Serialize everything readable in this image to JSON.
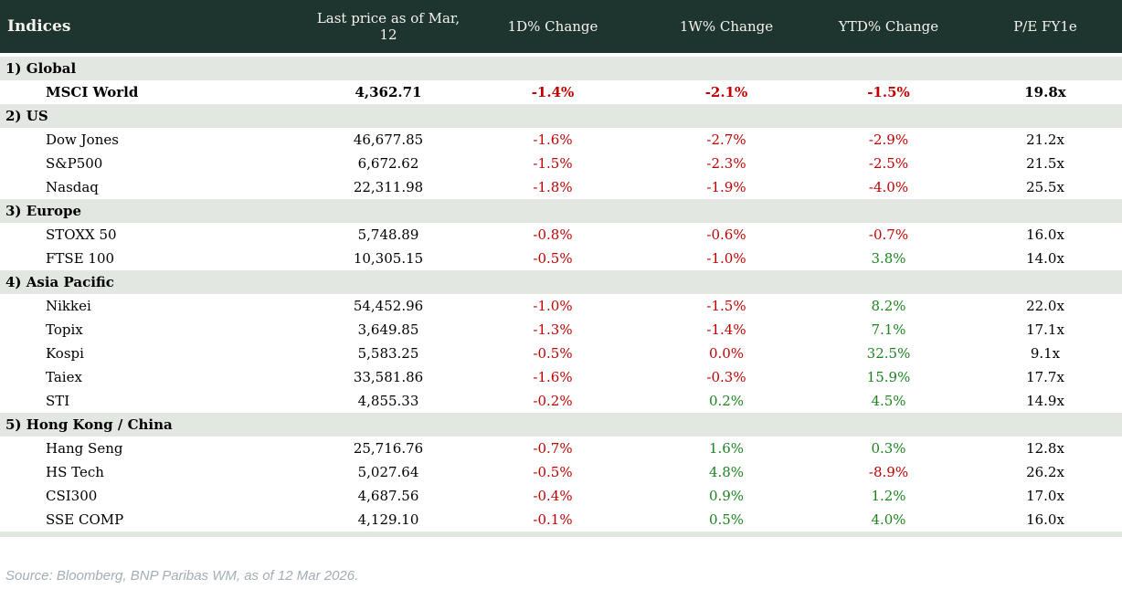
{
  "colors": {
    "header_bg": "#1e342e",
    "header_text": "#f5f3ec",
    "section_bg": "#e2e7e2",
    "negative": "#c00000",
    "positive": "#1d8420",
    "source_text": "#a3adb6"
  },
  "header": {
    "columns": [
      {
        "label": "Indices"
      },
      {
        "label": "Last price as of Mar, 12"
      },
      {
        "label": "1D% Change"
      },
      {
        "label": "1W% Change"
      },
      {
        "label": "YTD% Change"
      },
      {
        "label": "P/E FY1e"
      }
    ]
  },
  "sections": [
    {
      "label": "1) Global",
      "rows": [
        {
          "name": "MSCI World",
          "bold": true,
          "price": "4,362.71",
          "d1": "-1.4%",
          "d1c": "neg",
          "w1": "-2.1%",
          "w1c": "neg",
          "ytd": "-1.5%",
          "ytdc": "neg",
          "pe": "19.8x"
        }
      ]
    },
    {
      "label": "2) US",
      "rows": [
        {
          "name": "Dow Jones",
          "bold": false,
          "price": "46,677.85",
          "d1": "-1.6%",
          "d1c": "neg",
          "w1": "-2.7%",
          "w1c": "neg",
          "ytd": "-2.9%",
          "ytdc": "neg",
          "pe": "21.2x"
        },
        {
          "name": "S&P500",
          "bold": false,
          "price": "6,672.62",
          "d1": "-1.5%",
          "d1c": "neg",
          "w1": "-2.3%",
          "w1c": "neg",
          "ytd": "-2.5%",
          "ytdc": "neg",
          "pe": "21.5x"
        },
        {
          "name": "Nasdaq",
          "bold": false,
          "price": "22,311.98",
          "d1": "-1.8%",
          "d1c": "neg",
          "w1": "-1.9%",
          "w1c": "neg",
          "ytd": "-4.0%",
          "ytdc": "neg",
          "pe": "25.5x"
        }
      ]
    },
    {
      "label": "3) Europe",
      "rows": [
        {
          "name": "STOXX 50",
          "bold": false,
          "price": "5,748.89",
          "d1": "-0.8%",
          "d1c": "neg",
          "w1": "-0.6%",
          "w1c": "neg",
          "ytd": "-0.7%",
          "ytdc": "neg",
          "pe": "16.0x"
        },
        {
          "name": "FTSE 100",
          "bold": false,
          "price": "10,305.15",
          "d1": "-0.5%",
          "d1c": "neg",
          "w1": "-1.0%",
          "w1c": "neg",
          "ytd": "3.8%",
          "ytdc": "pos",
          "pe": "14.0x"
        }
      ]
    },
    {
      "label": "4) Asia Pacific",
      "rows": [
        {
          "name": "Nikkei",
          "bold": false,
          "price": "54,452.96",
          "d1": "-1.0%",
          "d1c": "neg",
          "w1": "-1.5%",
          "w1c": "neg",
          "ytd": "8.2%",
          "ytdc": "pos",
          "pe": "22.0x"
        },
        {
          "name": "Topix",
          "bold": false,
          "price": "3,649.85",
          "d1": "-1.3%",
          "d1c": "neg",
          "w1": "-1.4%",
          "w1c": "neg",
          "ytd": "7.1%",
          "ytdc": "pos",
          "pe": "17.1x"
        },
        {
          "name": "Kospi",
          "bold": false,
          "price": "5,583.25",
          "d1": "-0.5%",
          "d1c": "neg",
          "w1": "0.0%",
          "w1c": "neg",
          "ytd": "32.5%",
          "ytdc": "pos",
          "pe": "9.1x"
        },
        {
          "name": "Taiex",
          "bold": false,
          "price": "33,581.86",
          "d1": "-1.6%",
          "d1c": "neg",
          "w1": "-0.3%",
          "w1c": "neg",
          "ytd": "15.9%",
          "ytdc": "pos",
          "pe": "17.7x"
        },
        {
          "name": "STI",
          "bold": false,
          "price": "4,855.33",
          "d1": "-0.2%",
          "d1c": "neg",
          "w1": "0.2%",
          "w1c": "pos",
          "ytd": "4.5%",
          "ytdc": "pos",
          "pe": "14.9x"
        }
      ]
    },
    {
      "label": "5) Hong Kong / China",
      "rows": [
        {
          "name": "Hang Seng",
          "bold": false,
          "price": "25,716.76",
          "d1": "-0.7%",
          "d1c": "neg",
          "w1": "1.6%",
          "w1c": "pos",
          "ytd": "0.3%",
          "ytdc": "pos",
          "pe": "12.8x"
        },
        {
          "name": "HS Tech",
          "bold": false,
          "price": "5,027.64",
          "d1": "-0.5%",
          "d1c": "neg",
          "w1": "4.8%",
          "w1c": "pos",
          "ytd": "-8.9%",
          "ytdc": "neg",
          "pe": "26.2x"
        },
        {
          "name": "CSI300",
          "bold": false,
          "price": "4,687.56",
          "d1": "-0.4%",
          "d1c": "neg",
          "w1": "0.9%",
          "w1c": "pos",
          "ytd": "1.2%",
          "ytdc": "pos",
          "pe": "17.0x"
        },
        {
          "name": "SSE COMP",
          "bold": false,
          "price": "4,129.10",
          "d1": "-0.1%",
          "d1c": "neg",
          "w1": "0.5%",
          "w1c": "pos",
          "ytd": "4.0%",
          "ytdc": "pos",
          "pe": "16.0x"
        }
      ]
    }
  ],
  "footer": {
    "source": "Source: Bloomberg, BNP Paribas WM, as of 12 Mar 2026."
  }
}
